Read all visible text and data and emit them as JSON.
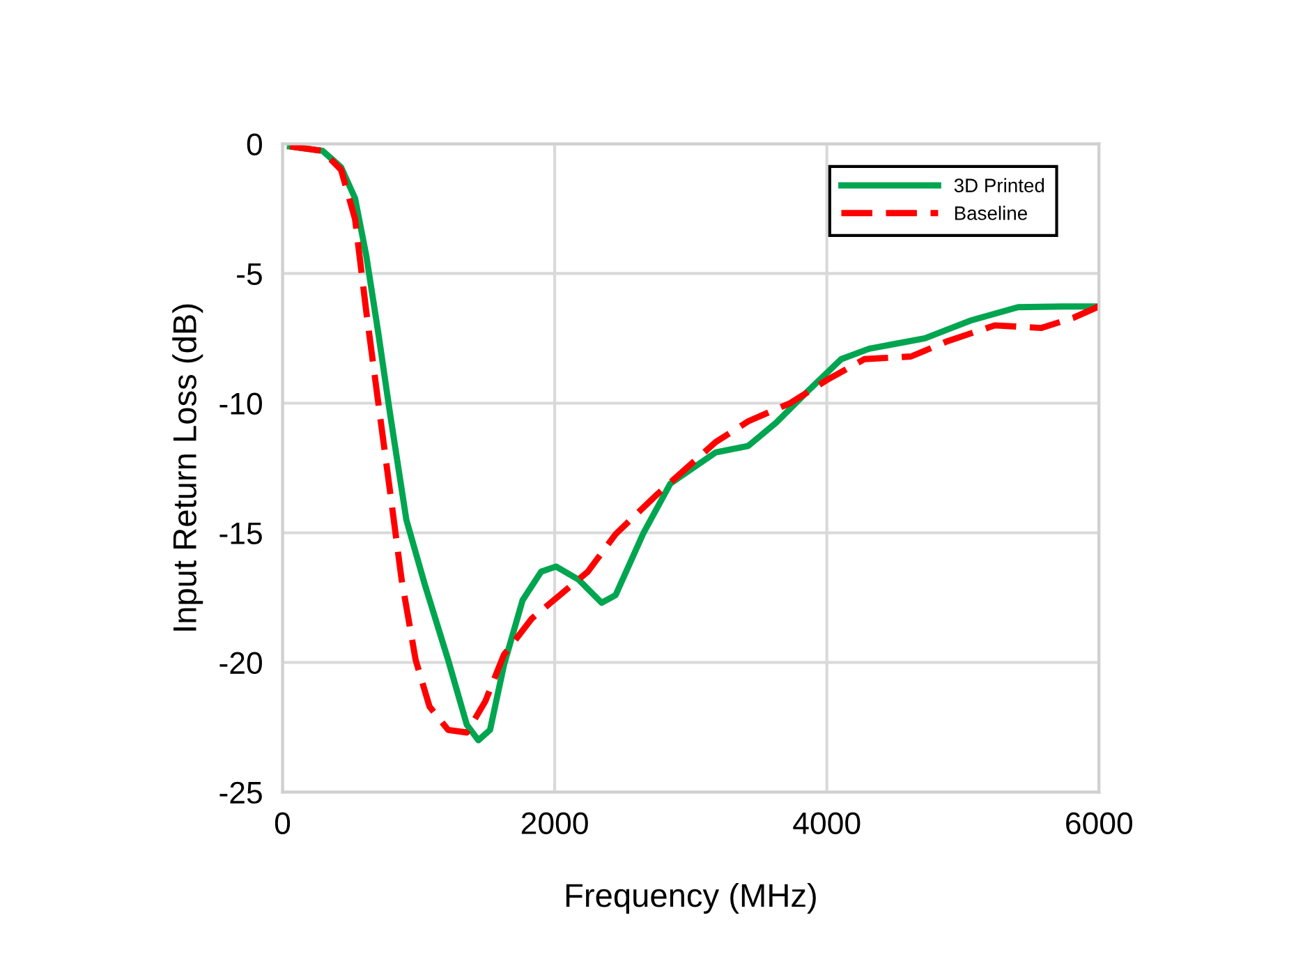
{
  "chart_data": {
    "type": "line",
    "xlabel": "Frequency (MHz)",
    "ylabel": "Input Return Loss (dB)",
    "xlim": [
      0,
      6000
    ],
    "ylim": [
      -25,
      0
    ],
    "xticks": [
      0,
      2000,
      4000,
      6000
    ],
    "yticks": [
      -25,
      -20,
      -15,
      -10,
      -5,
      0
    ],
    "grid": true,
    "legend": "top right",
    "marker": "none",
    "series": [
      {
        "name": "3D Printed",
        "color": "#00a550",
        "line_style": "solid",
        "x": [
          55,
          294,
          430,
          533,
          615,
          704,
          790,
          910,
          1046,
          1217,
          1354,
          1439,
          1525,
          1627,
          1764,
          1900,
          2010,
          2174,
          2345,
          2448,
          2653,
          2850,
          3183,
          3422,
          3628,
          3867,
          4106,
          4311,
          4721,
          5064,
          5405,
          5747,
          6000
        ],
        "values": [
          -0.1,
          -0.27,
          -0.9,
          -2.1,
          -4.3,
          -7.3,
          -10.4,
          -14.5,
          -17.0,
          -19.9,
          -22.4,
          -23.0,
          -22.6,
          -20.1,
          -17.6,
          -16.5,
          -16.3,
          -16.8,
          -17.7,
          -17.4,
          -15.0,
          -13.1,
          -11.9,
          -11.65,
          -10.75,
          -9.5,
          -8.3,
          -7.9,
          -7.5,
          -6.8,
          -6.3,
          -6.27,
          -6.27
        ]
      },
      {
        "name": "Baseline",
        "color": "#ff0000",
        "line_style": "dashed",
        "x": [
          55,
          294,
          430,
          533,
          615,
          704,
          790,
          875,
          978,
          1080,
          1217,
          1354,
          1490,
          1627,
          1833,
          2038,
          2243,
          2448,
          2756,
          3183,
          3422,
          3730,
          4003,
          4277,
          4618,
          4892,
          5234,
          5577,
          5815,
          6000
        ],
        "values": [
          -0.1,
          -0.27,
          -1.0,
          -2.9,
          -6.45,
          -10.0,
          -13.4,
          -16.8,
          -19.9,
          -21.7,
          -22.6,
          -22.7,
          -21.5,
          -19.7,
          -18.3,
          -17.4,
          -16.5,
          -15.05,
          -13.5,
          -11.5,
          -10.7,
          -10.0,
          -9.1,
          -8.3,
          -8.2,
          -7.6,
          -7.0,
          -7.1,
          -6.7,
          -6.27
        ]
      }
    ]
  }
}
